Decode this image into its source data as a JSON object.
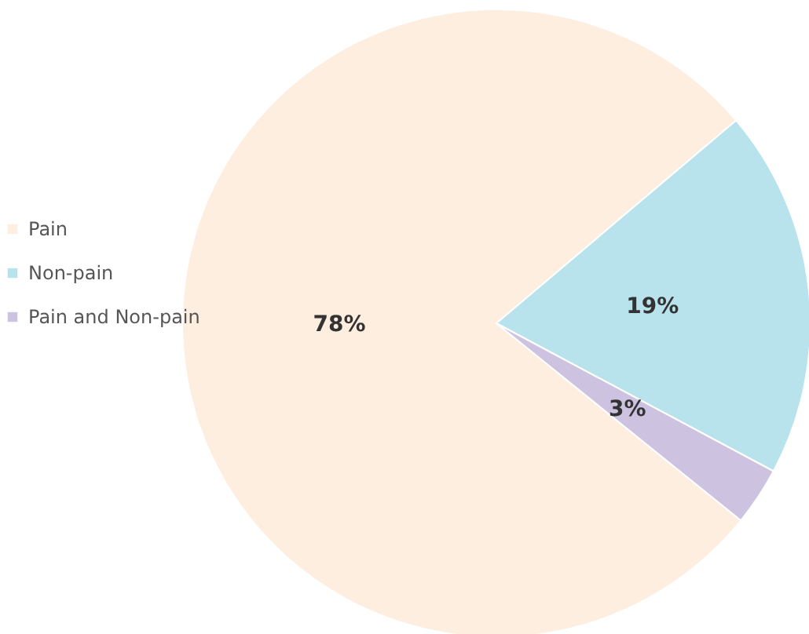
{
  "chart_data": {
    "type": "pie",
    "categories": [
      "Pain",
      "Non-pain",
      "Pain and Non-pain"
    ],
    "values": [
      78,
      19,
      3
    ],
    "colors": [
      "#fdeee0",
      "#b8e3ec",
      "#cdc3e1"
    ],
    "value_labels": [
      "78%",
      "19%",
      "3%"
    ],
    "legend": "left"
  }
}
